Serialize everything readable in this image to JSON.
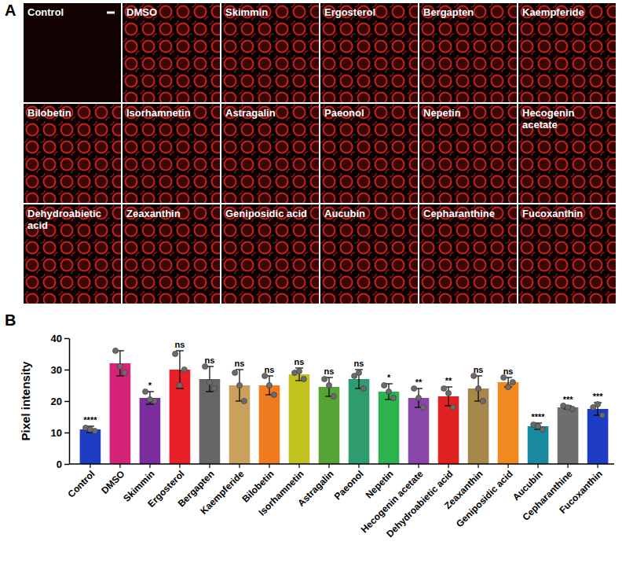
{
  "panel_labels": [
    "A",
    "B"
  ],
  "image_grid": {
    "tiles": [
      "Control",
      "DMSO",
      "Skimmin",
      "Ergosterol",
      "Bergapten",
      "Kaempferide",
      "Bilobetin",
      "Isorhamnetin",
      "Astragalin",
      "Paeonol",
      "Nepetin",
      "Hecogenin acetate",
      "Dehydroabietic acid",
      "Zeaxanthin",
      "Geniposidic acid",
      "Aucubin",
      "Cepharanthine",
      "Fucoxanthin"
    ]
  },
  "chart_data": {
    "type": "bar",
    "y_label": "Pixel intensity",
    "categories": [
      "Control",
      "DMSO",
      "Skimmin",
      "Ergosterol",
      "Bergapten",
      "Kaempferide",
      "Bilobetin",
      "Isorhamnetin",
      "Astragalin",
      "Paeonol",
      "Nepetin",
      "Hecogenin acetate",
      "Dehydroabietic acid",
      "Zeaxanthin",
      "Geniposidic acid",
      "Aucubin",
      "Cepharanthine",
      "Fucoxanthin"
    ],
    "values": [
      11,
      32,
      21,
      30,
      27,
      25,
      25,
      28.5,
      24.5,
      27,
      23,
      21,
      21.5,
      24,
      26,
      12,
      18,
      17.5
    ],
    "errors": [
      1,
      4,
      2,
      6,
      4,
      5,
      3,
      2,
      3,
      3,
      2.5,
      3,
      3,
      4,
      1.5,
      1,
      0.5,
      2
    ],
    "points": [
      [
        11.5,
        10.5,
        11
      ],
      [
        36,
        29,
        31
      ],
      [
        23,
        20,
        20.5
      ],
      [
        35,
        30,
        25
      ],
      [
        31,
        24,
        26
      ],
      [
        29,
        20,
        25
      ],
      [
        28,
        22,
        25
      ],
      [
        29,
        27,
        29.5
      ],
      [
        27,
        21.5,
        25
      ],
      [
        28,
        24,
        29
      ],
      [
        25,
        21,
        23
      ],
      [
        24,
        18,
        21
      ],
      [
        24,
        18,
        22.5
      ],
      [
        28,
        20,
        24
      ],
      [
        27.5,
        26,
        24.5
      ],
      [
        12.5,
        11,
        12
      ],
      [
        18.5,
        17.5,
        18
      ],
      [
        18,
        15.5,
        19
      ]
    ],
    "significance": [
      "****",
      null,
      "*",
      "ns",
      "ns",
      "ns",
      "ns",
      "ns",
      "ns",
      "ns",
      "*",
      "**",
      "**",
      "ns",
      "ns",
      "****",
      "***",
      "***"
    ],
    "colors": [
      "#1f3cc4",
      "#d6237a",
      "#7b2d9c",
      "#e8202a",
      "#666666",
      "#c9a05c",
      "#f07b1f",
      "#c2c21f",
      "#56a336",
      "#2e9c6e",
      "#2db34e",
      "#8a45a8",
      "#e02222",
      "#a8874a",
      "#f08a1e",
      "#1a8aa0",
      "#6e6e6e",
      "#1f3cc4"
    ],
    "ylim": [
      0,
      40
    ],
    "yticks": [
      0,
      10,
      20,
      30,
      40
    ]
  }
}
